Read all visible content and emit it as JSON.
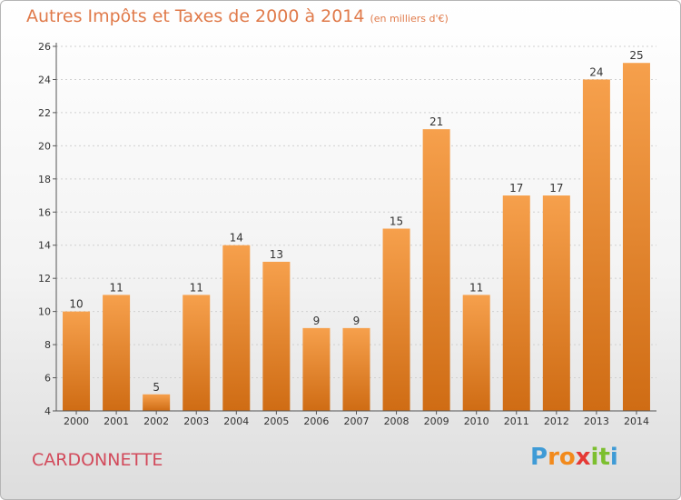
{
  "chart_data": {
    "type": "bar",
    "title": "Autres Impôts et Taxes de 2000 à 2014",
    "subtitle": "(en milliers d'€)",
    "categories": [
      "2000",
      "2001",
      "2002",
      "2003",
      "2004",
      "2005",
      "2006",
      "2007",
      "2008",
      "2009",
      "2010",
      "2011",
      "2012",
      "2013",
      "2014"
    ],
    "values": [
      10,
      11,
      5,
      11,
      14,
      13,
      9,
      9,
      15,
      21,
      11,
      17,
      17,
      24,
      25
    ],
    "ylim": [
      4,
      26
    ],
    "yticks": [
      4,
      6,
      8,
      10,
      12,
      14,
      16,
      18,
      20,
      22,
      24,
      26
    ],
    "grid": true,
    "bar_color_top": "#f6a04c",
    "bar_color_bottom": "#cf6c14"
  },
  "footer": {
    "place": "CARDONNETTE",
    "logo": [
      "P",
      "r",
      "o",
      "x",
      "i",
      "t",
      "i"
    ],
    "logo_colors": [
      "#3f9bd6",
      "#f28a1c",
      "#f28a1c",
      "#e53935",
      "#7cbf2f",
      "#7cbf2f",
      "#3f9bd6"
    ]
  }
}
